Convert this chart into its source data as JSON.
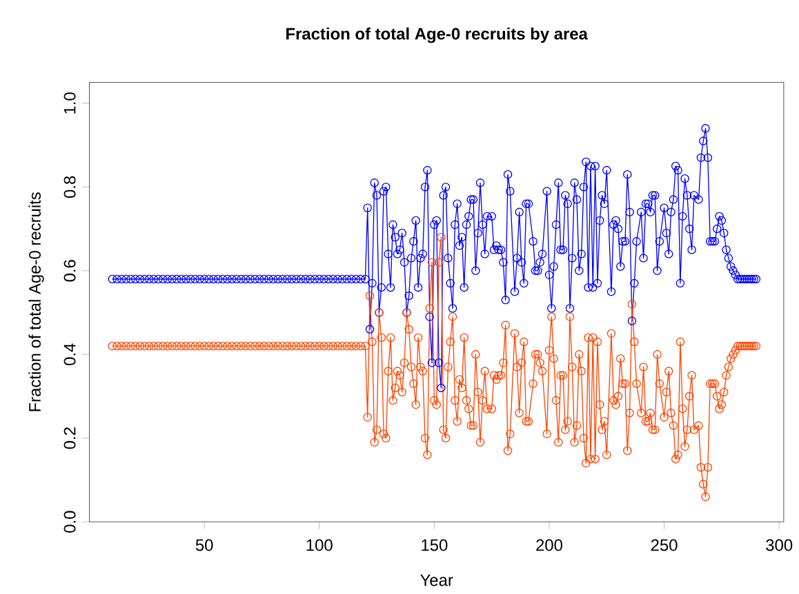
{
  "chart_data": {
    "type": "line",
    "title": "Fraction of total Age-0 recruits by area",
    "xlabel": "Year",
    "ylabel": "Fraction of total Age-0 recruits",
    "x": [
      10,
      12,
      14,
      16,
      18,
      20,
      22,
      24,
      26,
      28,
      30,
      32,
      34,
      36,
      38,
      40,
      42,
      44,
      46,
      48,
      50,
      52,
      54,
      56,
      58,
      60,
      62,
      64,
      66,
      68,
      70,
      72,
      74,
      76,
      78,
      80,
      82,
      84,
      86,
      88,
      90,
      92,
      94,
      96,
      98,
      100,
      102,
      104,
      106,
      108,
      110,
      112,
      114,
      116,
      118,
      120,
      121,
      122,
      123,
      124,
      125,
      126,
      127,
      128,
      129,
      130,
      131,
      132,
      133,
      134,
      135,
      136,
      137,
      138,
      139,
      140,
      141,
      142,
      143,
      144,
      145,
      146,
      147,
      148,
      149,
      150,
      151,
      152,
      153,
      154,
      155,
      156,
      157,
      158,
      159,
      160,
      161,
      162,
      163,
      164,
      165,
      166,
      167,
      168,
      169,
      170,
      171,
      172,
      173,
      175,
      176,
      177,
      178,
      179,
      180,
      181,
      182,
      183,
      185,
      186,
      187,
      188,
      189,
      190,
      191,
      193,
      194,
      195,
      196,
      197,
      199,
      200,
      201,
      202,
      203,
      204,
      205,
      206,
      207,
      208,
      209,
      210,
      211,
      212,
      213,
      214,
      215,
      216,
      217,
      218,
      219,
      220,
      221,
      222,
      223,
      224,
      225,
      227,
      228,
      229,
      230,
      231,
      232,
      233,
      234,
      235,
      236,
      237,
      238,
      240,
      241,
      242,
      243,
      244,
      245,
      246,
      247,
      248,
      250,
      251,
      252,
      253,
      254,
      255,
      256,
      257,
      258,
      259,
      260,
      261,
      262,
      263,
      265,
      266,
      267,
      268,
      269,
      270,
      271,
      272,
      273,
      274,
      275,
      276,
      277,
      278,
      279,
      280,
      281,
      282,
      283,
      284,
      285,
      286,
      287,
      288,
      289,
      290
    ],
    "series": [
      {
        "color": "#0000ff",
        "values": [
          0.58,
          0.58,
          0.58,
          0.58,
          0.58,
          0.58,
          0.58,
          0.58,
          0.58,
          0.58,
          0.58,
          0.58,
          0.58,
          0.58,
          0.58,
          0.58,
          0.58,
          0.58,
          0.58,
          0.58,
          0.58,
          0.58,
          0.58,
          0.58,
          0.58,
          0.58,
          0.58,
          0.58,
          0.58,
          0.58,
          0.58,
          0.58,
          0.58,
          0.58,
          0.58,
          0.58,
          0.58,
          0.58,
          0.58,
          0.58,
          0.58,
          0.58,
          0.58,
          0.58,
          0.58,
          0.58,
          0.58,
          0.58,
          0.58,
          0.58,
          0.58,
          0.58,
          0.58,
          0.58,
          0.58,
          0.58,
          0.75,
          0.46,
          0.57,
          0.81,
          0.78,
          0.5,
          0.56,
          0.79,
          0.8,
          0.64,
          0.56,
          0.71,
          0.68,
          0.64,
          0.65,
          0.69,
          0.62,
          0.5,
          0.54,
          0.63,
          0.67,
          0.72,
          0.56,
          0.63,
          0.64,
          0.8,
          0.84,
          0.49,
          0.38,
          0.71,
          0.72,
          0.38,
          0.32,
          0.78,
          0.8,
          0.63,
          0.57,
          0.51,
          0.71,
          0.76,
          0.66,
          0.68,
          0.56,
          0.71,
          0.73,
          0.77,
          0.77,
          0.6,
          0.69,
          0.81,
          0.71,
          0.64,
          0.73,
          0.73,
          0.65,
          0.66,
          0.65,
          0.65,
          0.62,
          0.53,
          0.83,
          0.79,
          0.55,
          0.63,
          0.74,
          0.62,
          0.57,
          0.76,
          0.76,
          0.67,
          0.6,
          0.6,
          0.62,
          0.64,
          0.79,
          0.59,
          0.51,
          0.61,
          0.71,
          0.81,
          0.65,
          0.65,
          0.78,
          0.76,
          0.51,
          0.63,
          0.81,
          0.77,
          0.6,
          0.64,
          0.8,
          0.86,
          0.56,
          0.85,
          0.56,
          0.85,
          0.57,
          0.72,
          0.78,
          0.76,
          0.84,
          0.55,
          0.71,
          0.72,
          0.7,
          0.61,
          0.67,
          0.67,
          0.83,
          0.74,
          0.48,
          0.57,
          0.67,
          0.74,
          0.63,
          0.76,
          0.76,
          0.74,
          0.78,
          0.78,
          0.6,
          0.67,
          0.75,
          0.69,
          0.64,
          0.74,
          0.77,
          0.85,
          0.84,
          0.57,
          0.73,
          0.82,
          0.78,
          0.7,
          0.65,
          0.78,
          0.77,
          0.87,
          0.91,
          0.94,
          0.87,
          0.67,
          0.67,
          0.67,
          0.7,
          0.73,
          0.72,
          0.69,
          0.65,
          0.63,
          0.61,
          0.6,
          0.59,
          0.58,
          0.58,
          0.58,
          0.58,
          0.58,
          0.58,
          0.58,
          0.58,
          0.58
        ]
      },
      {
        "color": "#ff4500",
        "values": [
          0.42,
          0.42,
          0.42,
          0.42,
          0.42,
          0.42,
          0.42,
          0.42,
          0.42,
          0.42,
          0.42,
          0.42,
          0.42,
          0.42,
          0.42,
          0.42,
          0.42,
          0.42,
          0.42,
          0.42,
          0.42,
          0.42,
          0.42,
          0.42,
          0.42,
          0.42,
          0.42,
          0.42,
          0.42,
          0.42,
          0.42,
          0.42,
          0.42,
          0.42,
          0.42,
          0.42,
          0.42,
          0.42,
          0.42,
          0.42,
          0.42,
          0.42,
          0.42,
          0.42,
          0.42,
          0.42,
          0.42,
          0.42,
          0.42,
          0.42,
          0.42,
          0.42,
          0.42,
          0.42,
          0.42,
          0.42,
          0.25,
          0.54,
          0.43,
          0.19,
          0.22,
          0.5,
          0.44,
          0.21,
          0.2,
          0.36,
          0.44,
          0.29,
          0.32,
          0.36,
          0.35,
          0.31,
          0.38,
          0.5,
          0.46,
          0.37,
          0.33,
          0.28,
          0.44,
          0.37,
          0.36,
          0.2,
          0.16,
          0.51,
          0.62,
          0.29,
          0.28,
          0.62,
          0.68,
          0.22,
          0.2,
          0.37,
          0.43,
          0.49,
          0.29,
          0.24,
          0.34,
          0.32,
          0.44,
          0.29,
          0.27,
          0.23,
          0.23,
          0.4,
          0.31,
          0.19,
          0.29,
          0.36,
          0.27,
          0.27,
          0.35,
          0.34,
          0.35,
          0.35,
          0.38,
          0.47,
          0.17,
          0.21,
          0.45,
          0.37,
          0.26,
          0.38,
          0.43,
          0.24,
          0.24,
          0.33,
          0.4,
          0.4,
          0.38,
          0.36,
          0.21,
          0.41,
          0.49,
          0.39,
          0.29,
          0.19,
          0.35,
          0.35,
          0.22,
          0.24,
          0.49,
          0.37,
          0.19,
          0.23,
          0.4,
          0.36,
          0.2,
          0.14,
          0.44,
          0.15,
          0.44,
          0.15,
          0.43,
          0.28,
          0.22,
          0.24,
          0.16,
          0.45,
          0.29,
          0.28,
          0.3,
          0.39,
          0.33,
          0.33,
          0.17,
          0.26,
          0.52,
          0.43,
          0.33,
          0.26,
          0.37,
          0.24,
          0.24,
          0.26,
          0.22,
          0.22,
          0.4,
          0.33,
          0.25,
          0.31,
          0.36,
          0.26,
          0.23,
          0.15,
          0.16,
          0.43,
          0.27,
          0.18,
          0.22,
          0.3,
          0.35,
          0.22,
          0.23,
          0.13,
          0.09,
          0.06,
          0.13,
          0.33,
          0.33,
          0.33,
          0.3,
          0.27,
          0.28,
          0.31,
          0.35,
          0.37,
          0.39,
          0.4,
          0.41,
          0.42,
          0.42,
          0.42,
          0.42,
          0.42,
          0.42,
          0.42,
          0.42,
          0.42
        ]
      }
    ],
    "xlim": [
      0,
      302
    ],
    "ylim": [
      0,
      1.05
    ],
    "xticks": [
      50,
      100,
      150,
      200,
      250,
      300
    ],
    "yticks": [
      {
        "value": 0,
        "label": "0.0"
      },
      0.2,
      0.4,
      0.6,
      0.8,
      {
        "value": 1,
        "label": "1.0"
      }
    ],
    "marker": "circle",
    "line_style": "solid"
  }
}
